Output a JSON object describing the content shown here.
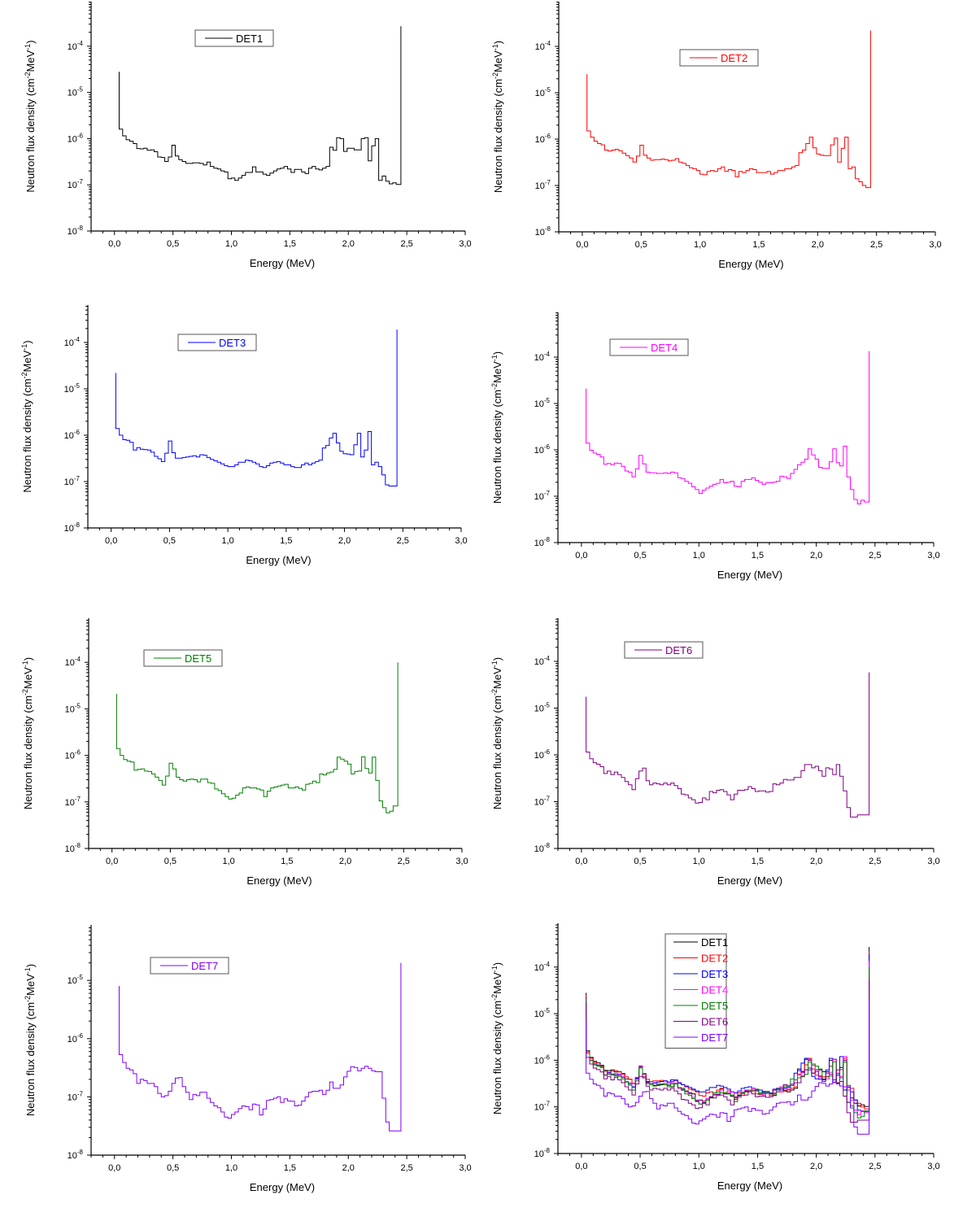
{
  "chart_data": {
    "type": "line",
    "step": true,
    "xlabel": "Energy (MeV)",
    "ylabel": "Neutron flux density (cm^-2 MeV^-1)",
    "ylabel_parts": [
      "Neutron flux density (cm",
      "-2",
      "MeV",
      "-1",
      ")"
    ],
    "x_ticks": [
      "0,0",
      "0,5",
      "1,0",
      "1,5",
      "2,0",
      "2,5",
      "3,0"
    ],
    "x_tick_values": [
      0,
      0.5,
      1.0,
      1.5,
      2.0,
      2.5,
      3.0
    ],
    "xlim": [
      -0.2,
      3.0
    ],
    "y_scale": "log",
    "bin_start": 0.04,
    "bin_width": 0.03,
    "end_spike_x": 2.45,
    "colors": {
      "DET1": "#000000",
      "DET2": "#ff0000",
      "DET3": "#0000ff",
      "DET4": "#ff00ff",
      "DET5": "#008000",
      "DET6": "#800080",
      "DET7": "#8000ff"
    },
    "series": {
      "DET1": {
        "start_spike": 2.8e-05,
        "end_spike": 0.00027,
        "values": [
          1.6e-06,
          1.15e-06,
          9.5e-07,
          8.8e-07,
          7.8e-07,
          6.1e-07,
          6e-07,
          6.2e-07,
          5.6e-07,
          5.7e-07,
          5.2e-07,
          4e-07,
          3.9e-07,
          3.2e-07,
          4e-07,
          7.2e-07,
          4.2e-07,
          3.5e-07,
          3.2e-07,
          2.9e-07,
          2.9e-07,
          3e-07,
          3e-07,
          2.9e-07,
          2.7e-07,
          3.1e-07,
          2.5e-07,
          2.3e-07,
          2.2e-07,
          2e-07,
          1.9e-07,
          1.35e-07,
          1.4e-07,
          1.25e-07,
          1.4e-07,
          1.6e-07,
          1.85e-07,
          1.85e-07,
          2.45e-07,
          1.9e-07,
          1.9e-07,
          1.7e-07,
          1.6e-07,
          1.8e-07,
          2e-07,
          2.2e-07,
          2.3e-07,
          2.5e-07,
          2.2e-07,
          1.85e-07,
          2.15e-07,
          2.15e-07,
          1.9e-07,
          1.75e-07,
          2.3e-07,
          2.5e-07,
          2.2e-07,
          2.1e-07,
          2.3e-07,
          2.5e-07,
          6.5e-07,
          5.6e-07,
          1.05e-06,
          1e-06,
          5.3e-07,
          6.2e-07,
          6.2e-07,
          5.7e-07,
          5.7e-07,
          1e-06,
          1.05e-06,
          3.3e-07,
          7e-07,
          1e-06,
          1.25e-07,
          1.55e-07,
          1.2e-07,
          1.05e-07,
          1.1e-07,
          1.02e-07
        ]
      },
      "DET2": {
        "start_spike": 2.5e-05,
        "end_spike": 0.00022,
        "values": [
          1.5e-06,
          1.1e-06,
          9e-07,
          8e-07,
          7.5e-07,
          5.8e-07,
          5.5e-07,
          5.8e-07,
          6e-07,
          5.6e-07,
          5e-07,
          4.4e-07,
          3.9e-07,
          3.2e-07,
          4.3e-07,
          7.4e-07,
          4.5e-07,
          3.9e-07,
          3.5e-07,
          3.6e-07,
          3.6e-07,
          3.7e-07,
          3.6e-07,
          3.4e-07,
          3.5e-07,
          3.8e-07,
          3.2e-07,
          3e-07,
          2.7e-07,
          2.4e-07,
          2.3e-07,
          2.1e-07,
          1.75e-07,
          1.7e-07,
          2e-07,
          2.1e-07,
          2e-07,
          2.3e-07,
          2.5e-07,
          2e-07,
          2.2e-07,
          2.1e-07,
          1.55e-07,
          2e-07,
          1.9e-07,
          2.1e-07,
          2.3e-07,
          2.2e-07,
          1.9e-07,
          1.9e-07,
          1.9e-07,
          2e-07,
          1.75e-07,
          1.9e-07,
          2.1e-07,
          2.1e-07,
          2.3e-07,
          2.3e-07,
          2.5e-07,
          2.7e-07,
          5.1e-07,
          5.8e-07,
          8e-07,
          1.1e-06,
          6.5e-07,
          4.8e-07,
          4.5e-07,
          4.4e-07,
          4.4e-07,
          7.5e-07,
          1.05e-06,
          3.2e-07,
          6.3e-07,
          1.1e-06,
          2.3e-07,
          2.5e-07,
          1.4e-07,
          1.2e-07,
          1e-07,
          9e-08
        ]
      },
      "DET3": {
        "start_spike": 2.2e-05,
        "end_spike": 0.00019,
        "values": [
          1.4e-06,
          1e-06,
          8e-07,
          7.8e-07,
          7e-07,
          4.8e-07,
          5.4e-07,
          5e-07,
          4.9e-07,
          4.8e-07,
          4.3e-07,
          3.5e-07,
          3.1e-07,
          2.7e-07,
          4.1e-07,
          7.5e-07,
          4.2e-07,
          3.2e-07,
          3.2e-07,
          3.3e-07,
          3.4e-07,
          3.5e-07,
          3.6e-07,
          3.4e-07,
          3.8e-07,
          3.7e-07,
          3.3e-07,
          3e-07,
          2.8e-07,
          2.6e-07,
          2.4e-07,
          2.2e-07,
          2.1e-07,
          2.1e-07,
          2.3e-07,
          2.6e-07,
          2.6e-07,
          2.9e-07,
          2.8e-07,
          2.6e-07,
          2.4e-07,
          2.1e-07,
          2e-07,
          2.2e-07,
          2.5e-07,
          2.6e-07,
          2.7e-07,
          2.5e-07,
          2.3e-07,
          2.3e-07,
          2.1e-07,
          2e-07,
          2e-07,
          2.3e-07,
          2.5e-07,
          2.3e-07,
          2.5e-07,
          2.7e-07,
          2.9e-07,
          5.3e-07,
          6e-07,
          8.7e-07,
          1.1e-06,
          6.8e-07,
          4.5e-07,
          4e-07,
          3.9e-07,
          3.8e-07,
          6.2e-07,
          1.1e-06,
          3.4e-07,
          4.8e-07,
          1.2e-06,
          2.3e-07,
          2.6e-07,
          2.1e-07,
          1.4e-07,
          8.5e-08,
          8e-08,
          8e-08
        ]
      },
      "DET4": {
        "start_spike": 2.1e-05,
        "end_spike": 0.000135,
        "values": [
          1.4e-06,
          9.8e-07,
          8.5e-07,
          8e-07,
          7e-07,
          4.9e-07,
          5.1e-07,
          4.8e-07,
          5.2e-07,
          5.1e-07,
          4.4e-07,
          3.5e-07,
          3.3e-07,
          2.6e-07,
          3.9e-07,
          7.6e-07,
          5e-07,
          3.3e-07,
          3.2e-07,
          3.2e-07,
          3.1e-07,
          3.1e-07,
          3.2e-07,
          3.1e-07,
          3.3e-07,
          3.2e-07,
          2.5e-07,
          2.4e-07,
          2.1e-07,
          1.9e-07,
          1.6e-07,
          1.4e-07,
          1.15e-07,
          1.35e-07,
          1.5e-07,
          1.65e-07,
          1.8e-07,
          1.9e-07,
          2.3e-07,
          1.95e-07,
          2e-07,
          2.1e-07,
          1.65e-07,
          1.6e-07,
          2.1e-07,
          2.3e-07,
          2.3e-07,
          2.5e-07,
          2.2e-07,
          2e-07,
          1.8e-07,
          1.95e-07,
          1.95e-07,
          2e-07,
          2.1e-07,
          2.7e-07,
          2.6e-07,
          2.4e-07,
          3.1e-07,
          3.8e-07,
          4.8e-07,
          5.4e-07,
          6.3e-07,
          1.05e-06,
          7.8e-07,
          6.3e-07,
          4.2e-07,
          4e-07,
          4e-07,
          5.5e-07,
          1.05e-06,
          5.3e-07,
          4.5e-07,
          1.2e-06,
          2.6e-07,
          1.4e-07,
          8.5e-08,
          6.8e-08,
          8.2e-08,
          7.5e-08
        ]
      },
      "DET5": {
        "start_spike": 2.1e-05,
        "end_spike": 0.0001,
        "values": [
          1.4e-06,
          1e-06,
          8.1e-07,
          7.5e-07,
          7.2e-07,
          4.8e-07,
          5e-07,
          5.1e-07,
          4.6e-07,
          4.5e-07,
          4e-07,
          3.4e-07,
          2.9e-07,
          2.3e-07,
          3.6e-07,
          6.8e-07,
          5.1e-07,
          3.4e-07,
          3e-07,
          2.8e-07,
          3e-07,
          3.1e-07,
          3e-07,
          2.7e-07,
          3.1e-07,
          3.1e-07,
          2.6e-07,
          2.5e-07,
          1.9e-07,
          1.75e-07,
          1.5e-07,
          1.3e-07,
          1.15e-07,
          1.2e-07,
          1.4e-07,
          1.55e-07,
          2e-07,
          2.1e-07,
          2e-07,
          2e-07,
          1.9e-07,
          1.8e-07,
          1.3e-07,
          1.7e-07,
          2e-07,
          2.1e-07,
          2.2e-07,
          2.3e-07,
          2.4e-07,
          2e-07,
          2e-07,
          2.1e-07,
          1.95e-07,
          1.8e-07,
          2.4e-07,
          2.5e-07,
          2.8e-07,
          2.6e-07,
          4e-07,
          3.8e-07,
          4.2e-07,
          4.4e-07,
          5e-07,
          9.2e-07,
          8.3e-07,
          7.5e-07,
          6.5e-07,
          4e-07,
          4.5e-07,
          4.6e-07,
          9.3e-07,
          5.2e-07,
          4.2e-07,
          9.2e-07,
          2.9e-07,
          1.05e-07,
          7.5e-08,
          5.8e-08,
          6.3e-08,
          8.2e-08
        ]
      },
      "DET6": {
        "start_spike": 1.75e-05,
        "end_spike": 5.8e-05,
        "values": [
          1.15e-06,
          8.3e-07,
          6.8e-07,
          6.3e-07,
          5.6e-07,
          4e-07,
          4.5e-07,
          3.8e-07,
          4.3e-07,
          3.8e-07,
          3.3e-07,
          2.7e-07,
          2.3e-07,
          1.8e-07,
          3.1e-07,
          4.5e-07,
          5.2e-07,
          2.8e-07,
          2.3e-07,
          2.5e-07,
          2.4e-07,
          2.3e-07,
          2.5e-07,
          2.3e-07,
          2.5e-07,
          2.2e-07,
          1.9e-07,
          1.45e-07,
          1.4e-07,
          1.2e-07,
          1.1e-07,
          9.3e-08,
          9.6e-08,
          1.2e-07,
          1.1e-07,
          1.65e-07,
          1.55e-07,
          1.75e-07,
          1.8e-07,
          1.65e-07,
          1.4e-07,
          1.1e-07,
          1.45e-07,
          1.75e-07,
          1.75e-07,
          1.8e-07,
          2.1e-07,
          1.9e-07,
          1.65e-07,
          1.7e-07,
          1.7e-07,
          1.6e-07,
          1.65e-07,
          2.4e-07,
          2.3e-07,
          2.5e-07,
          3e-07,
          2.9e-07,
          2.9e-07,
          3.3e-07,
          3.3e-07,
          4.6e-07,
          6.2e-07,
          6.2e-07,
          5.3e-07,
          5.7e-07,
          4.6e-07,
          3.5e-07,
          5.3e-07,
          5e-07,
          3.8e-07,
          6.2e-07,
          3.5e-07,
          1.7e-07,
          7.5e-08,
          4.7e-08,
          4.7e-08,
          5.2e-08,
          5.2e-08,
          5.2e-08
        ]
      },
      "DET7": {
        "start_spike": 8e-06,
        "end_spike": 2e-05,
        "values": [
          5.3e-07,
          3.9e-07,
          3.1e-07,
          2.9e-07,
          2.5e-07,
          1.7e-07,
          2e-07,
          1.9e-07,
          1.7e-07,
          1.7e-07,
          1.5e-07,
          1.15e-07,
          1e-07,
          1.05e-07,
          1.25e-07,
          1.7e-07,
          2.1e-07,
          2.15e-07,
          1.5e-07,
          1.2e-07,
          9e-08,
          1.1e-07,
          1.05e-07,
          1.2e-07,
          1.2e-07,
          9.5e-08,
          8e-08,
          7e-08,
          6.5e-08,
          5.5e-08,
          4.5e-08,
          4.3e-08,
          5e-08,
          5.5e-08,
          6.3e-08,
          7e-08,
          6.8e-08,
          6e-08,
          7.5e-08,
          7.3e-08,
          4.9e-08,
          6.2e-08,
          8.7e-08,
          9e-08,
          9.5e-08,
          1e-07,
          8e-08,
          9.3e-08,
          8.5e-08,
          8.4e-08,
          7e-08,
          7.2e-08,
          8.5e-08,
          1e-07,
          1.2e-07,
          1.25e-07,
          1.25e-07,
          1.3e-07,
          1.1e-07,
          1.3e-07,
          1.8e-07,
          1.4e-07,
          1.4e-07,
          1.6e-07,
          2.2e-07,
          2.75e-07,
          3.3e-07,
          3.2e-07,
          2.8e-07,
          3.1e-07,
          3.35e-07,
          3.1e-07,
          2.8e-07,
          2.7e-07,
          2.7e-07,
          9.5e-08,
          3.7e-08,
          2.6e-08,
          2.6e-08,
          2.6e-08
        ]
      }
    },
    "panels": [
      {
        "id": "det1",
        "series": [
          "DET1"
        ],
        "legend": [
          "DET1"
        ],
        "y_ticks_exp": [
          -8,
          -7,
          -6,
          -5,
          -4
        ],
        "ylim": [
          1e-08,
          0.001
        ]
      },
      {
        "id": "det2",
        "series": [
          "DET2"
        ],
        "legend": [
          "DET2"
        ],
        "y_ticks_exp": [
          -8,
          -7,
          -6,
          -5,
          -4
        ],
        "ylim": [
          1e-08,
          0.001
        ]
      },
      {
        "id": "det3",
        "series": [
          "DET3"
        ],
        "legend": [
          "DET3"
        ],
        "y_ticks_exp": [
          -8,
          -7,
          -6,
          -5,
          -4
        ],
        "ylim": [
          1e-08,
          0.0008
        ]
      },
      {
        "id": "det4",
        "series": [
          "DET4"
        ],
        "legend": [
          "DET4"
        ],
        "y_ticks_exp": [
          -8,
          -7,
          -6,
          -5,
          -4
        ],
        "ylim": [
          1e-08,
          0.0008
        ]
      },
      {
        "id": "det5",
        "series": [
          "DET5"
        ],
        "legend": [
          "DET5"
        ],
        "y_ticks_exp": [
          -8,
          -7,
          -6,
          -5,
          -4
        ],
        "ylim": [
          1e-08,
          0.0008
        ]
      },
      {
        "id": "det6",
        "series": [
          "DET6"
        ],
        "legend": [
          "DET6"
        ],
        "y_ticks_exp": [
          -8,
          -7,
          -6,
          -5,
          -4
        ],
        "ylim": [
          1e-08,
          0.0008
        ]
      },
      {
        "id": "det7",
        "series": [
          "DET7"
        ],
        "legend": [
          "DET7"
        ],
        "y_ticks_exp": [
          -8,
          -7,
          -6,
          -5
        ],
        "ylim": [
          1e-08,
          9e-05
        ]
      },
      {
        "id": "all",
        "series": [
          "DET1",
          "DET2",
          "DET3",
          "DET4",
          "DET5",
          "DET6",
          "DET7"
        ],
        "legend": [
          "DET1",
          "DET2",
          "DET3",
          "DET4",
          "DET5",
          "DET6",
          "DET7"
        ],
        "y_ticks_exp": [
          -8,
          -7,
          -6,
          -5,
          -4
        ],
        "ylim": [
          1e-08,
          0.0008
        ]
      }
    ]
  }
}
